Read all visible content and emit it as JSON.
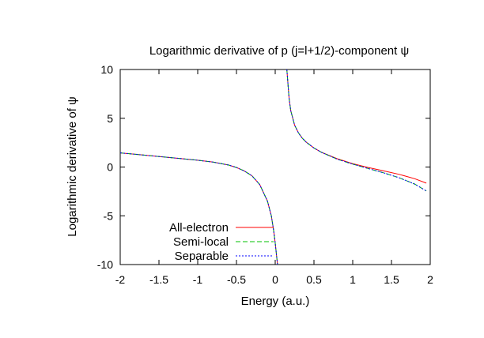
{
  "chart_data": {
    "type": "line",
    "title": "Logarithmic derivative of p (j=l+1/2)-component ψ",
    "xlabel": "Energy (a.u.)",
    "ylabel": "Logarithmic derivative of ψ",
    "xlim": [
      -2,
      2
    ],
    "ylim": [
      -10,
      10
    ],
    "xticks": [
      "-2",
      "-1.5",
      "-1",
      "-0.5",
      "0",
      "0.5",
      "1",
      "1.5",
      "2"
    ],
    "yticks": [
      "-10",
      "-5",
      "0",
      "5",
      "10"
    ],
    "grid": false,
    "legend_position": "bottom-left",
    "series": [
      {
        "name": "All-electron",
        "color": "#ff0000",
        "dash": "solid",
        "branches": [
          {
            "x": [
              -2.0,
              -1.8,
              -1.6,
              -1.4,
              -1.2,
              -1.0,
              -0.8,
              -0.6,
              -0.5,
              -0.4,
              -0.3,
              -0.2,
              -0.1,
              -0.05,
              -0.02,
              0.0,
              0.02,
              0.03
            ],
            "y": [
              1.45,
              1.3,
              1.15,
              1.0,
              0.85,
              0.7,
              0.5,
              0.2,
              -0.05,
              -0.4,
              -0.9,
              -1.8,
              -3.5,
              -5.0,
              -6.5,
              -7.8,
              -9.3,
              -10.0
            ]
          },
          {
            "x": [
              0.15,
              0.18,
              0.2,
              0.25,
              0.3,
              0.35,
              0.4,
              0.5,
              0.6,
              0.8,
              1.0,
              1.2,
              1.4,
              1.6,
              1.8,
              1.95
            ],
            "y": [
              10.0,
              7.0,
              5.8,
              4.3,
              3.5,
              2.95,
              2.55,
              1.95,
              1.5,
              0.85,
              0.35,
              -0.05,
              -0.4,
              -0.75,
              -1.2,
              -1.65
            ]
          }
        ]
      },
      {
        "name": "Semi-local",
        "color": "#00c000",
        "dash": "6,3",
        "branches": [
          {
            "x": [
              -2.0,
              -1.8,
              -1.6,
              -1.4,
              -1.2,
              -1.0,
              -0.8,
              -0.6,
              -0.5,
              -0.4,
              -0.3,
              -0.2,
              -0.1,
              -0.05,
              -0.02,
              0.0,
              0.02,
              0.03
            ],
            "y": [
              1.45,
              1.3,
              1.15,
              1.0,
              0.85,
              0.7,
              0.5,
              0.2,
              -0.05,
              -0.4,
              -0.9,
              -1.8,
              -3.5,
              -5.0,
              -6.5,
              -7.8,
              -9.3,
              -10.0
            ]
          },
          {
            "x": [
              0.15,
              0.18,
              0.2,
              0.25,
              0.3,
              0.35,
              0.4,
              0.5,
              0.6,
              0.8,
              1.0,
              1.2,
              1.4,
              1.6,
              1.8,
              1.95
            ],
            "y": [
              10.0,
              7.0,
              5.8,
              4.3,
              3.5,
              2.95,
              2.55,
              1.95,
              1.5,
              0.8,
              0.3,
              -0.15,
              -0.6,
              -1.1,
              -1.75,
              -2.45
            ]
          }
        ]
      },
      {
        "name": "Separable",
        "color": "#0000ff",
        "dash": "2,2",
        "branches": [
          {
            "x": [
              -2.0,
              -1.8,
              -1.6,
              -1.4,
              -1.2,
              -1.0,
              -0.8,
              -0.6,
              -0.5,
              -0.4,
              -0.3,
              -0.2,
              -0.1,
              -0.05,
              -0.02,
              0.0,
              0.02,
              0.03
            ],
            "y": [
              1.45,
              1.3,
              1.15,
              1.0,
              0.85,
              0.7,
              0.5,
              0.2,
              -0.05,
              -0.4,
              -0.9,
              -1.8,
              -3.5,
              -5.0,
              -6.5,
              -7.8,
              -9.3,
              -10.0
            ]
          },
          {
            "x": [
              0.15,
              0.18,
              0.2,
              0.25,
              0.3,
              0.35,
              0.4,
              0.5,
              0.6,
              0.8,
              1.0,
              1.2,
              1.4,
              1.6,
              1.8,
              1.95
            ],
            "y": [
              10.0,
              7.0,
              5.8,
              4.3,
              3.5,
              2.95,
              2.55,
              1.95,
              1.5,
              0.8,
              0.3,
              -0.15,
              -0.6,
              -1.1,
              -1.75,
              -2.45
            ]
          }
        ]
      }
    ]
  }
}
